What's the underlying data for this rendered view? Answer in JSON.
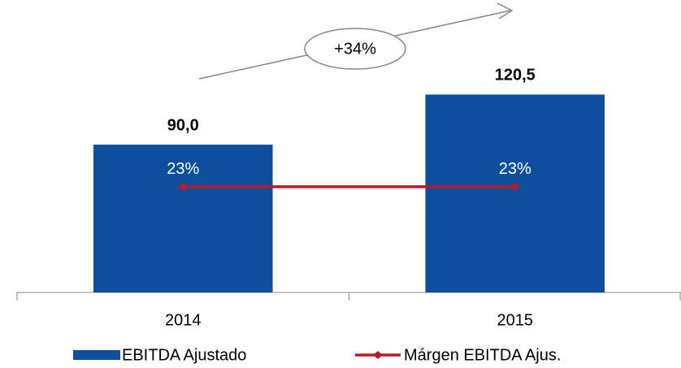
{
  "chart_data": {
    "type": "bar",
    "annotation": "+34%",
    "categories": [
      "2014",
      "2015"
    ],
    "series": [
      {
        "name": "EBITDA Ajustado",
        "type": "bar",
        "color": "#0d4e9f",
        "values": [
          90.0,
          120.5
        ],
        "value_labels": [
          "90,0",
          "120,5"
        ]
      },
      {
        "name": "Márgen EBITDA Ajus.",
        "type": "line",
        "axis": "y2",
        "color": "#b81c24",
        "values": [
          23,
          23
        ],
        "value_labels": [
          "23%",
          "23%"
        ]
      }
    ],
    "ylim": [
      0,
      140
    ],
    "y2lim": [
      0,
      50
    ],
    "legend": "bottom"
  }
}
